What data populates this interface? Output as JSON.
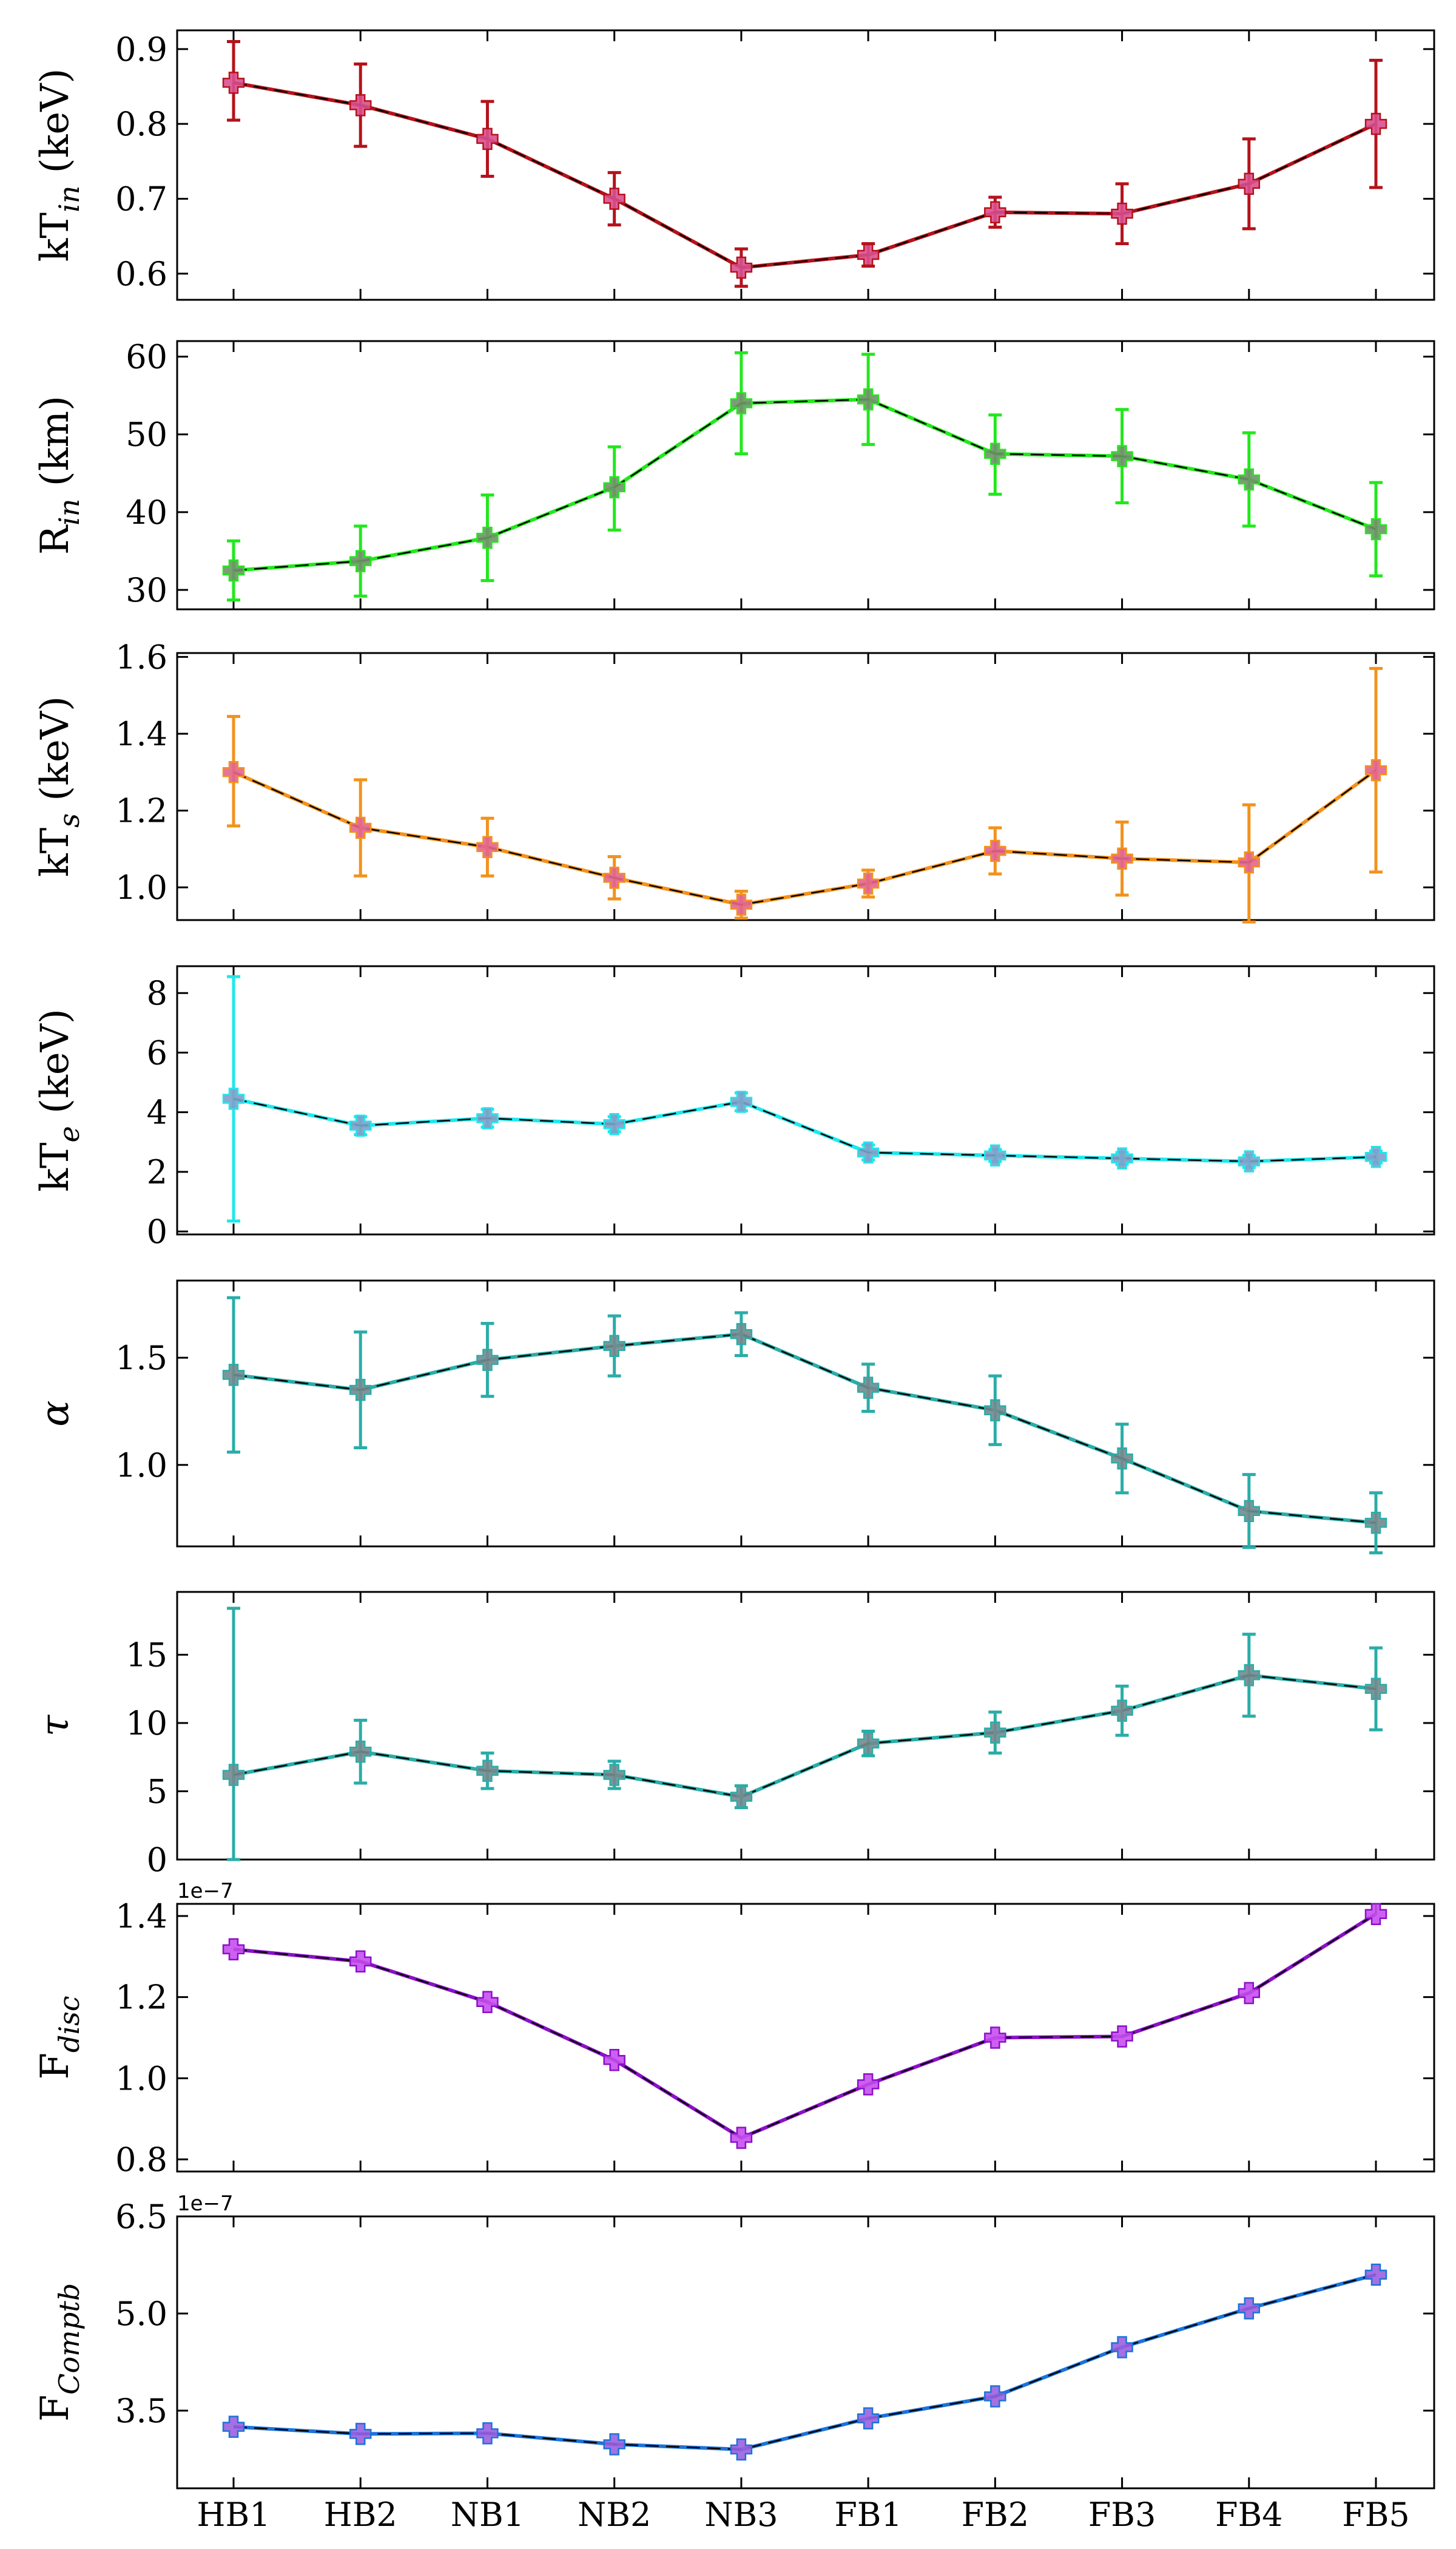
{
  "figure": {
    "categories": [
      "HB1",
      "HB2",
      "NB1",
      "NB2",
      "NB3",
      "FB1",
      "FB2",
      "FB3",
      "FB4",
      "FB5"
    ]
  },
  "chart_data": [
    {
      "type": "line",
      "ylabel_main": "kT",
      "ylabel_sub": "in",
      "ylabel_suffix": " (keV)",
      "ylim": [
        0.565,
        0.925
      ],
      "yticks": [
        0.6,
        0.7,
        0.8,
        0.9
      ],
      "ytick_labels": [
        "0.6",
        "0.7",
        "0.8",
        "0.9"
      ],
      "offset_label": "",
      "color": "#b5121b",
      "marker_fill": "#d9508f",
      "values": [
        0.855,
        0.825,
        0.78,
        0.7,
        0.608,
        0.625,
        0.682,
        0.68,
        0.72,
        0.8
      ],
      "err_low": [
        0.05,
        0.055,
        0.05,
        0.035,
        0.025,
        0.015,
        0.02,
        0.04,
        0.06,
        0.085
      ],
      "err_high": [
        0.055,
        0.055,
        0.05,
        0.035,
        0.025,
        0.015,
        0.02,
        0.04,
        0.06,
        0.085
      ]
    },
    {
      "type": "line",
      "ylabel_main": "R",
      "ylabel_sub": "in",
      "ylabel_suffix": " (km)",
      "ylim": [
        27.5,
        62
      ],
      "yticks": [
        30,
        40,
        50,
        60
      ],
      "ytick_labels": [
        "30",
        "40",
        "50",
        "60"
      ],
      "offset_label": "",
      "color": "#22e81c",
      "marker_fill": "#6f9268",
      "values": [
        32.5,
        33.7,
        36.7,
        43.2,
        54.0,
        54.5,
        47.5,
        47.2,
        44.2,
        37.8
      ],
      "err_low": [
        3.8,
        4.5,
        5.5,
        5.5,
        6.5,
        5.8,
        5.2,
        6.0,
        6.0,
        6.0
      ],
      "err_high": [
        3.8,
        4.5,
        5.5,
        5.2,
        6.5,
        5.8,
        5.0,
        6.0,
        6.0,
        6.0
      ]
    },
    {
      "type": "line",
      "ylabel_main": "kT",
      "ylabel_sub": "s",
      "ylabel_suffix": " (keV)",
      "ylim": [
        0.915,
        1.61
      ],
      "yticks": [
        1.0,
        1.2,
        1.4,
        1.6
      ],
      "ytick_labels": [
        "1.0",
        "1.2",
        "1.4",
        "1.6"
      ],
      "offset_label": "",
      "color": "#f2921c",
      "marker_fill": "#e2648f",
      "values": [
        1.3,
        1.155,
        1.105,
        1.025,
        0.955,
        1.01,
        1.095,
        1.075,
        1.065,
        1.305
      ],
      "err_low": [
        0.14,
        0.125,
        0.075,
        0.055,
        0.035,
        0.035,
        0.06,
        0.095,
        0.155,
        0.265
      ],
      "err_high": [
        0.145,
        0.125,
        0.075,
        0.055,
        0.035,
        0.035,
        0.06,
        0.095,
        0.15,
        0.265
      ]
    },
    {
      "type": "line",
      "ylabel_main": "kT",
      "ylabel_sub": "e",
      "ylabel_suffix": " (keV)",
      "ylim": [
        -0.1,
        8.9
      ],
      "yticks": [
        0,
        2,
        4,
        6,
        8
      ],
      "ytick_labels": [
        "0",
        "2",
        "4",
        "6",
        "8"
      ],
      "offset_label": "",
      "color": "#1ee8ee",
      "marker_fill": "#7ea0c8",
      "values": [
        4.45,
        3.55,
        3.8,
        3.6,
        4.35,
        2.65,
        2.55,
        2.45,
        2.35,
        2.5
      ],
      "err_low": [
        4.1,
        0.3,
        0.3,
        0.25,
        0.3,
        0.25,
        0.2,
        0.2,
        0.2,
        0.2
      ],
      "err_high": [
        4.1,
        0.3,
        0.3,
        0.25,
        0.3,
        0.25,
        0.2,
        0.2,
        0.2,
        0.2
      ]
    },
    {
      "type": "line",
      "ylabel_main": "α",
      "ylabel_sub": "",
      "ylabel_suffix": "",
      "ylim": [
        0.62,
        1.86
      ],
      "yticks": [
        1.0,
        1.5
      ],
      "ytick_labels": [
        "1.0",
        "1.5"
      ],
      "offset_label": "",
      "color": "#2aada8",
      "marker_fill": "#73898e",
      "values": [
        1.42,
        1.35,
        1.49,
        1.555,
        1.61,
        1.36,
        1.255,
        1.03,
        0.785,
        0.73
      ],
      "err_low": [
        0.36,
        0.27,
        0.17,
        0.14,
        0.1,
        0.11,
        0.16,
        0.16,
        0.17,
        0.14
      ],
      "err_high": [
        0.36,
        0.27,
        0.17,
        0.14,
        0.1,
        0.11,
        0.16,
        0.16,
        0.17,
        0.14
      ]
    },
    {
      "type": "line",
      "ylabel_main": "τ",
      "ylabel_sub": "",
      "ylabel_suffix": "",
      "ylim": [
        0,
        19.6
      ],
      "yticks": [
        0,
        5,
        10,
        15
      ],
      "ytick_labels": [
        "0",
        "5",
        "10",
        "15"
      ],
      "offset_label": "",
      "color": "#2aada8",
      "marker_fill": "#73898e",
      "values": [
        6.2,
        7.9,
        6.5,
        6.2,
        4.6,
        8.5,
        9.3,
        10.9,
        13.5,
        12.5
      ],
      "err_low": [
        6.2,
        2.3,
        1.3,
        1.0,
        0.8,
        0.9,
        1.5,
        1.8,
        3.0,
        3.0
      ],
      "err_high": [
        12.2,
        2.3,
        1.3,
        1.0,
        0.8,
        0.9,
        1.5,
        1.8,
        3.0,
        3.0
      ]
    },
    {
      "type": "line",
      "ylabel_main": "F",
      "ylabel_sub": "disc",
      "ylabel_suffix": "",
      "ylim": [
        0.77,
        1.43
      ],
      "yticks": [
        0.8,
        1.0,
        1.2,
        1.4
      ],
      "ytick_labels": [
        "0.8",
        "1.0",
        "1.2",
        "1.4"
      ],
      "offset_label": "1e−7",
      "color": "#8b10c8",
      "marker_fill": "#c84ff0",
      "values": [
        1.318,
        1.288,
        1.188,
        1.045,
        0.853,
        0.985,
        1.1,
        1.103,
        1.21,
        1.405
      ],
      "err_low": [
        0,
        0,
        0,
        0,
        0,
        0,
        0,
        0,
        0,
        0
      ],
      "err_high": [
        0,
        0,
        0,
        0,
        0,
        0,
        0,
        0,
        0,
        0
      ]
    },
    {
      "type": "line",
      "ylabel_main": "F",
      "ylabel_sub": "Comptb",
      "ylabel_suffix": "",
      "ylim": [
        2.3,
        6.5
      ],
      "yticks": [
        3.5,
        5.0,
        6.5
      ],
      "ytick_labels": [
        "3.5",
        "5.0",
        "6.5"
      ],
      "offset_label": "1e−7",
      "color": "#1c73d8",
      "marker_fill": "#9a60e0",
      "values": [
        3.25,
        3.14,
        3.15,
        2.98,
        2.9,
        3.38,
        3.72,
        4.48,
        5.08,
        5.6
      ],
      "err_low": [
        0,
        0,
        0,
        0,
        0,
        0,
        0,
        0,
        0,
        0
      ],
      "err_high": [
        0,
        0,
        0,
        0,
        0,
        0,
        0,
        0,
        0,
        0
      ]
    }
  ]
}
